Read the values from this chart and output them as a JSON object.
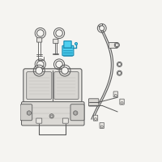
{
  "bg_color": "#f5f4f1",
  "line_color": "#5a5a5a",
  "highlight_color": "#2ab8e0",
  "highlight_color2": "#1a8ab0",
  "highlight_fill": "#4dcfef",
  "part_fill": "#e8e6e2",
  "part_fill2": "#d8d6d2",
  "figsize": [
    2.0,
    2.0
  ],
  "dpi": 100
}
